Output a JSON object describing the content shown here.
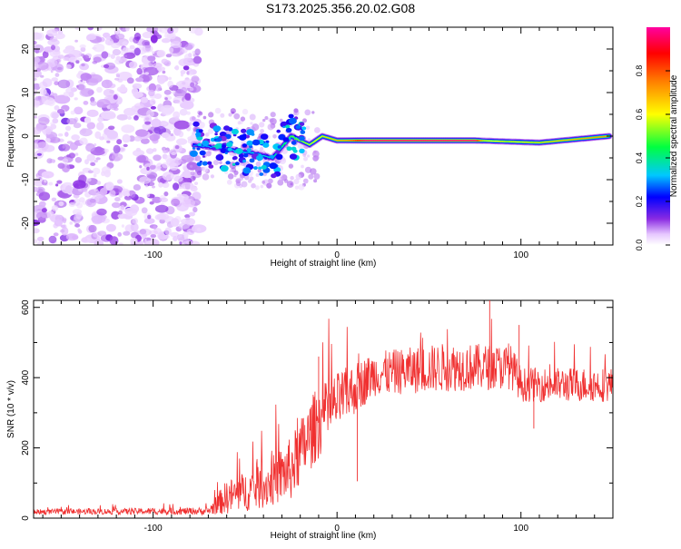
{
  "title": "S173.2025.356.20.02.G08",
  "chart_data": [
    {
      "type": "heatmap",
      "xlabel": "Height of straight line (km)",
      "ylabel": "Frequency (Hz)",
      "xlim": [
        -165,
        150
      ],
      "ylim": [
        -25,
        25
      ],
      "xticks": [
        -100,
        0,
        100
      ],
      "yticks": [
        -20,
        -10,
        0,
        10,
        20
      ],
      "colorbar": {
        "label": "Normalized spectral amplitude",
        "range": [
          0,
          1
        ],
        "ticks": [
          0.0,
          0.2,
          0.4,
          0.6,
          0.8
        ]
      },
      "description_features": {
        "noise_region_x": [
          -165,
          -75
        ],
        "transition_region_x": [
          -75,
          -20
        ],
        "ridge": [
          {
            "x": -78,
            "y": -2
          },
          {
            "x": -60,
            "y": -3
          },
          {
            "x": -45,
            "y": -4
          },
          {
            "x": -35,
            "y": -5
          },
          {
            "x": -25,
            "y": 0
          },
          {
            "x": -15,
            "y": -2
          },
          {
            "x": -8,
            "y": 0
          },
          {
            "x": 0,
            "y": -1
          },
          {
            "x": 20,
            "y": -1
          },
          {
            "x": 75,
            "y": -1
          },
          {
            "x": 110,
            "y": -1.5
          },
          {
            "x": 148,
            "y": 0
          }
        ],
        "ridge_strength": [
          {
            "x": -78,
            "v": 0.25
          },
          {
            "x": -40,
            "v": 0.3
          },
          {
            "x": -20,
            "v": 0.5
          },
          {
            "x": 5,
            "v": 0.7
          },
          {
            "x": 15,
            "v": 0.95
          },
          {
            "x": 75,
            "v": 0.95
          },
          {
            "x": 80,
            "v": 0.55
          },
          {
            "x": 150,
            "v": 0.7
          }
        ]
      }
    },
    {
      "type": "line",
      "xlabel": "Height of straight line (km)",
      "ylabel": "SNR (10 * v/v)",
      "xlim": [
        -165,
        150
      ],
      "ylim": [
        0,
        620
      ],
      "xticks": [
        -100,
        0,
        100
      ],
      "yticks": [
        0,
        200,
        400,
        600
      ],
      "series": [
        {
          "name": "SNR",
          "color": "#f03030",
          "envelope": [
            {
              "x": -165,
              "base": 18,
              "spread": 10
            },
            {
              "x": -70,
              "base": 20,
              "spread": 15
            },
            {
              "x": -60,
              "base": 60,
              "spread": 70
            },
            {
              "x": -40,
              "base": 90,
              "spread": 90
            },
            {
              "x": -25,
              "base": 140,
              "spread": 130
            },
            {
              "x": -12,
              "base": 260,
              "spread": 150
            },
            {
              "x": 0,
              "base": 330,
              "spread": 120
            },
            {
              "x": 20,
              "base": 410,
              "spread": 90
            },
            {
              "x": 60,
              "base": 430,
              "spread": 100
            },
            {
              "x": 95,
              "base": 430,
              "spread": 90
            },
            {
              "x": 100,
              "base": 380,
              "spread": 70
            },
            {
              "x": 150,
              "base": 380,
              "spread": 70
            }
          ],
          "notable_points": [
            {
              "x": 83,
              "y": 620
            },
            {
              "x": 99,
              "y": 550
            },
            {
              "x": 11,
              "y": 105
            },
            {
              "x": 107,
              "y": 255
            },
            {
              "x": -10,
              "y": 460
            }
          ]
        }
      ]
    }
  ]
}
